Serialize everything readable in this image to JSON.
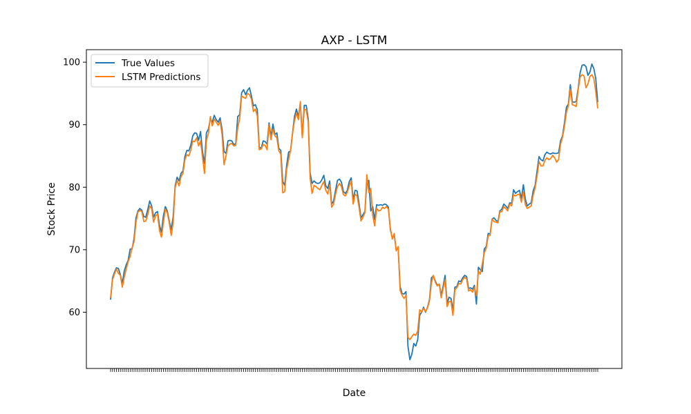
{
  "chart_data": {
    "type": "line",
    "title": "AXP - LSTM",
    "xlabel": "Date",
    "ylabel": "Stock Price",
    "ylim": [
      51,
      102
    ],
    "yticks": [
      60,
      70,
      80,
      90,
      100
    ],
    "grid": false,
    "legend_position": "top-left",
    "series": [
      {
        "name": "True Values",
        "color": "#1f77b4",
        "values": [
          62.0,
          65.5,
          66.4,
          67.1,
          67.0,
          66.0,
          64.6,
          66.6,
          67.6,
          68.3,
          70.1,
          70.1,
          71.8,
          75.1,
          76.2,
          76.6,
          76.3,
          75.3,
          75.2,
          76.4,
          77.8,
          77.0,
          75.2,
          75.9,
          76.1,
          73.9,
          72.8,
          75.4,
          76.9,
          76.2,
          74.6,
          73.2,
          75.3,
          80.2,
          81.6,
          81.0,
          82.2,
          82.6,
          84.9,
          85.9,
          85.8,
          86.7,
          88.2,
          88.7,
          88.6,
          87.5,
          88.9,
          85.7,
          83.8,
          88.7,
          89.3,
          90.9,
          90.4,
          91.5,
          90.8,
          90.4,
          91.1,
          89.2,
          85.7,
          85.4,
          87.4,
          87.5,
          87.4,
          86.8,
          87.0,
          91.3,
          91.6,
          95.1,
          95.6,
          94.8,
          95.5,
          95.9,
          94.6,
          93.0,
          93.2,
          92.4,
          86.4,
          86.2,
          87.4,
          87.3,
          86.9,
          90.3,
          88.1,
          90.1,
          88.4,
          88.7,
          86.2,
          85.9,
          80.9,
          80.3,
          83.5,
          85.6,
          85.8,
          88.6,
          91.3,
          92.5,
          91.3,
          93.4,
          88.1,
          93.1,
          93.1,
          91.0,
          82.3,
          80.6,
          81.0,
          80.7,
          80.6,
          80.7,
          81.2,
          81.9,
          80.2,
          79.8,
          81.0,
          77.3,
          77.8,
          79.5,
          81.1,
          81.3,
          80.8,
          79.3,
          79.0,
          79.5,
          80.9,
          81.5,
          78.0,
          79.5,
          79.4,
          77.4,
          75.1,
          75.6,
          76.1,
          80.9,
          81.1,
          76.2,
          76.9,
          74.8,
          77.2,
          77.1,
          77.2,
          77.1,
          77.3,
          77.2,
          76.8,
          73.2,
          71.9,
          72.4,
          70.0,
          70.2,
          64.1,
          63.0,
          62.9,
          63.3,
          54.6,
          52.4,
          53.3,
          55.0,
          54.6,
          55.6,
          59.5,
          60.0,
          60.8,
          60.0,
          60.8,
          62.0,
          65.5,
          65.8,
          65.0,
          64.3,
          64.5,
          62.7,
          64.2,
          65.9,
          61.4,
          62.4,
          62.2,
          60.3,
          64.0,
          64.1,
          65.0,
          64.9,
          65.5,
          65.9,
          65.7,
          63.8,
          63.9,
          63.7,
          64.3,
          61.3,
          67.2,
          66.8,
          66.5,
          70.1,
          70.5,
          72.6,
          72.5,
          74.9,
          75.1,
          74.7,
          74.5,
          76.2,
          76.5,
          77.3,
          77.0,
          76.6,
          77.5,
          77.4,
          79.6,
          79.0,
          79.3,
          79.5,
          78.2,
          80.4,
          78.1,
          77.0,
          77.3,
          77.5,
          79.4,
          80.3,
          82.6,
          84.9,
          84.4,
          84.2,
          85.2,
          85.6,
          85.4,
          85.3,
          85.5,
          85.4,
          85.4,
          85.5,
          87.4,
          88.2,
          90.3,
          92.8,
          93.3,
          96.4,
          93.7,
          93.6,
          93.7,
          95.8,
          98.3,
          99.5,
          99.6,
          99.3,
          97.9,
          98.4,
          99.7,
          99.0,
          97.4,
          93.6
        ]
      },
      {
        "name": "LSTM Predictions",
        "color": "#ff7f0e",
        "values": [
          62.3,
          65.2,
          66.1,
          66.9,
          66.2,
          65.9,
          64.0,
          65.6,
          66.9,
          68.1,
          68.9,
          70.3,
          71.3,
          74.4,
          76.0,
          76.3,
          76.1,
          74.5,
          74.6,
          75.6,
          77.0,
          76.6,
          74.4,
          75.4,
          75.7,
          73.1,
          72.0,
          74.3,
          76.5,
          75.9,
          74.3,
          72.3,
          74.3,
          79.9,
          81.1,
          80.2,
          81.7,
          82.2,
          84.4,
          85.2,
          85.0,
          85.9,
          87.4,
          87.3,
          87.9,
          86.6,
          87.4,
          84.8,
          82.2,
          87.5,
          88.6,
          91.3,
          89.8,
          90.9,
          90.4,
          89.9,
          90.6,
          88.4,
          83.6,
          85.0,
          86.6,
          86.9,
          87.0,
          86.6,
          86.7,
          89.5,
          91.0,
          94.6,
          94.4,
          94.2,
          95.0,
          94.8,
          94.1,
          92.1,
          92.5,
          91.4,
          86.0,
          86.1,
          86.8,
          86.7,
          86.0,
          90.0,
          87.6,
          89.3,
          88.2,
          87.9,
          85.8,
          85.3,
          79.1,
          79.3,
          82.8,
          84.4,
          85.9,
          88.6,
          90.6,
          91.9,
          90.8,
          93.7,
          87.9,
          92.5,
          92.4,
          90.5,
          81.5,
          79.0,
          80.3,
          80.1,
          79.8,
          79.6,
          80.3,
          80.9,
          79.5,
          78.9,
          80.4,
          76.8,
          77.3,
          78.9,
          80.1,
          80.6,
          80.1,
          78.8,
          78.6,
          79.2,
          80.2,
          81.0,
          77.3,
          78.9,
          78.6,
          76.8,
          74.6,
          75.2,
          75.9,
          82.0,
          79.1,
          79.8,
          75.5,
          73.8,
          76.6,
          76.2,
          76.3,
          76.8,
          76.6,
          76.9,
          76.5,
          73.4,
          71.7,
          72.6,
          69.8,
          70.5,
          63.5,
          62.7,
          62.2,
          62.7,
          56.0,
          55.6,
          56.1,
          56.5,
          56.3,
          57.0,
          60.4,
          60.0,
          60.6,
          60.1,
          60.7,
          61.8,
          64.7,
          65.9,
          64.8,
          64.2,
          64.5,
          62.3,
          63.8,
          65.2,
          60.9,
          61.7,
          61.7,
          59.5,
          63.6,
          63.9,
          64.6,
          64.5,
          65.2,
          65.6,
          65.3,
          63.4,
          63.6,
          63.2,
          64.0,
          62.6,
          66.6,
          66.1,
          67.7,
          69.5,
          70.2,
          72.2,
          72.3,
          74.9,
          74.5,
          74.4,
          74.3,
          76.0,
          76.1,
          76.9,
          76.6,
          76.2,
          77.3,
          77.0,
          78.8,
          78.6,
          78.8,
          78.9,
          77.6,
          79.3,
          77.2,
          76.6,
          76.8,
          77.0,
          78.7,
          79.9,
          81.8,
          84.1,
          83.4,
          83.4,
          84.3,
          84.7,
          84.4,
          84.6,
          85.1,
          84.7,
          84.0,
          84.4,
          86.9,
          88.0,
          89.7,
          92.0,
          93.0,
          95.7,
          93.2,
          93.1,
          92.9,
          95.6,
          97.6,
          98.0,
          97.8,
          95.9,
          96.5,
          97.7,
          98.0,
          97.4,
          95.3,
          92.6
        ]
      }
    ]
  }
}
